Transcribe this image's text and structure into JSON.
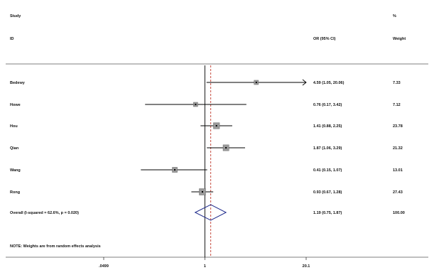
{
  "headers": {
    "study": "Study",
    "id": "ID",
    "or_ci": "OR (95% CI)",
    "pct": "%",
    "weight": "Weight"
  },
  "note": "NOTE: Weights are from random effects analysis",
  "chart_data": {
    "type": "forest",
    "xscale": "log",
    "xlim": [
      0.0499,
      20.1
    ],
    "x_ticks": [
      ".0499",
      "1",
      "20.1"
    ],
    "reference_line": 1,
    "studies": [
      {
        "label": "Bedewy",
        "or": 4.59,
        "lo": 1.05,
        "hi": 20.06,
        "ci_text": "4.59 (1.05, 20.06)",
        "weight": 7.33,
        "weight_text": "7.33",
        "arrow_right": true
      },
      {
        "label": "Howe",
        "or": 0.76,
        "lo": 0.17,
        "hi": 3.42,
        "ci_text": "0.76 (0.17, 3.42)",
        "weight": 7.12,
        "weight_text": "7.12"
      },
      {
        "label": "Hou",
        "or": 1.41,
        "lo": 0.88,
        "hi": 2.25,
        "ci_text": "1.41 (0.88, 2.25)",
        "weight": 23.78,
        "weight_text": "23.78"
      },
      {
        "label": "Qian",
        "or": 1.87,
        "lo": 1.06,
        "hi": 3.29,
        "ci_text": "1.87 (1.06, 3.29)",
        "weight": 21.32,
        "weight_text": "21.32"
      },
      {
        "label": "Wang",
        "or": 0.41,
        "lo": 0.15,
        "hi": 1.07,
        "ci_text": "0.41 (0.15, 1.07)",
        "weight": 13.01,
        "weight_text": "13.01"
      },
      {
        "label": "Rong",
        "or": 0.93,
        "lo": 0.67,
        "hi": 1.28,
        "ci_text": "0.93 (0.67, 1.28)",
        "weight": 27.43,
        "weight_text": "27.43"
      }
    ],
    "overall": {
      "label": "Overall  (I-squared = 62.6%, p = 0.020)",
      "or": 1.19,
      "lo": 0.75,
      "hi": 1.87,
      "ci_text": "1.19 (0.75, 1.87)",
      "weight_text": "100.00"
    },
    "colors": {
      "line": "#000000",
      "box": "#9a9a9a",
      "diamond": "#1e2a8c",
      "overall_line": "#c0392b"
    }
  }
}
